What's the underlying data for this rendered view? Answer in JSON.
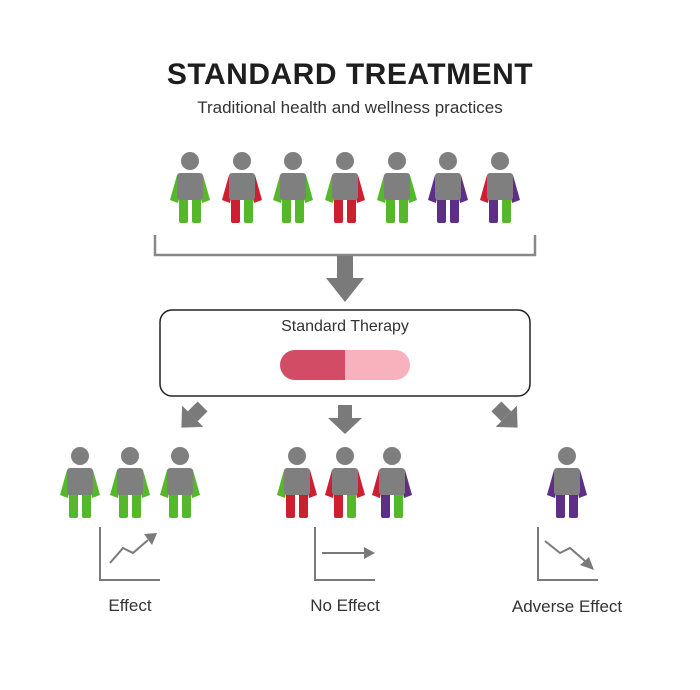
{
  "header": {
    "title": "STANDARD TREATMENT",
    "subtitle": "Traditional health and wellness practices"
  },
  "therapy": {
    "label": "Standard Therapy"
  },
  "outcomes": [
    {
      "label": "Effect",
      "trend": "up"
    },
    {
      "label": "No Effect",
      "trend": "flat"
    },
    {
      "label": "Adverse Effect",
      "trend": "down"
    }
  ],
  "colors": {
    "body": "#7f7f7f",
    "green": "#55b82b",
    "red": "#cc1f2f",
    "purple": "#5e2f87",
    "arrow": "#7a7a7a",
    "pill_left": "#d24c65",
    "pill_right": "#f7b2bd",
    "line": "#888888"
  },
  "people": {
    "top": [
      {
        "arms": [
          "green",
          "green"
        ],
        "legs": [
          "green",
          "green"
        ]
      },
      {
        "arms": [
          "red",
          "red"
        ],
        "legs": [
          "red",
          "green"
        ]
      },
      {
        "arms": [
          "green",
          "green"
        ],
        "legs": [
          "green",
          "green"
        ]
      },
      {
        "arms": [
          "green",
          "red"
        ],
        "legs": [
          "red",
          "red"
        ]
      },
      {
        "arms": [
          "green",
          "green"
        ],
        "legs": [
          "green",
          "green"
        ]
      },
      {
        "arms": [
          "purple",
          "purple"
        ],
        "legs": [
          "purple",
          "purple"
        ]
      },
      {
        "arms": [
          "red",
          "purple"
        ],
        "legs": [
          "purple",
          "green"
        ]
      }
    ],
    "effect": [
      {
        "arms": [
          "green",
          "green"
        ],
        "legs": [
          "green",
          "green"
        ]
      },
      {
        "arms": [
          "green",
          "green"
        ],
        "legs": [
          "green",
          "green"
        ]
      },
      {
        "arms": [
          "green",
          "green"
        ],
        "legs": [
          "green",
          "green"
        ]
      }
    ],
    "no_effect": [
      {
        "arms": [
          "green",
          "red"
        ],
        "legs": [
          "red",
          "red"
        ]
      },
      {
        "arms": [
          "red",
          "red"
        ],
        "legs": [
          "red",
          "green"
        ]
      },
      {
        "arms": [
          "red",
          "purple"
        ],
        "legs": [
          "purple",
          "green"
        ]
      }
    ],
    "adverse": [
      {
        "arms": [
          "purple",
          "purple"
        ],
        "legs": [
          "purple",
          "purple"
        ]
      }
    ]
  }
}
